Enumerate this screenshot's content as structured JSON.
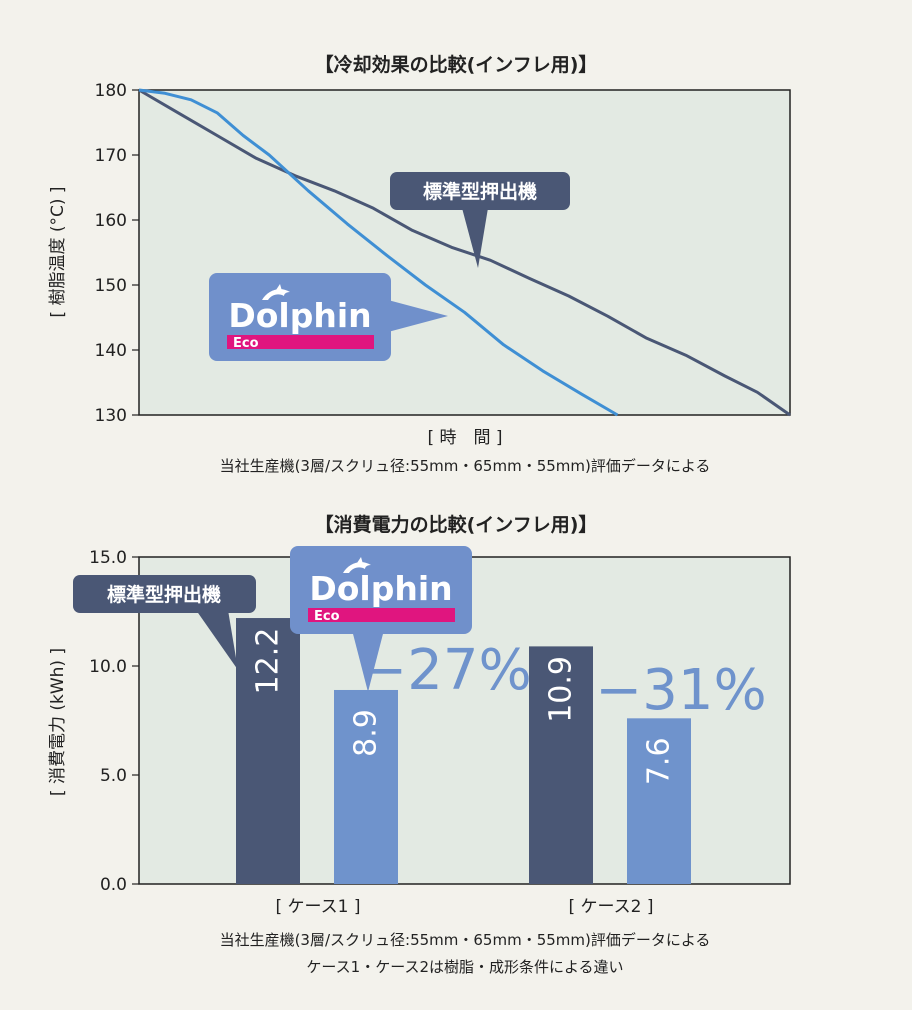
{
  "colors": {
    "background": "#f3f2ec",
    "plot_bg": "#e3eae3",
    "standard": "#4a5775",
    "dolphin": "#3f8fd4",
    "dolphin_bar": "#6f93cc",
    "bubble_standard": "#4a5775",
    "bubble_dolphin": "#7090cb",
    "eco": "#e0157f",
    "pct": "#6f93cc"
  },
  "logo": {
    "name": "Dolphin",
    "sub": "Eco",
    "icon": "dolphin-icon"
  },
  "chart_data": [
    {
      "type": "line",
      "title": "【冷却効果の比較(インフレ用)】",
      "xlabel": "[ 時　間 ]",
      "ylabel": "[ 樹脂温度 (°C) ]",
      "ylim": [
        130,
        180
      ],
      "xlim": [
        0,
        100
      ],
      "y_ticks": [
        "180",
        "170",
        "160",
        "150",
        "140",
        "130"
      ],
      "grid": false,
      "series": [
        {
          "name": "標準型押出機",
          "x": [
            0,
            6,
            12,
            18,
            24,
            30,
            36,
            42,
            48,
            54,
            60,
            66,
            72,
            78,
            84,
            90,
            95,
            100
          ],
          "y": [
            180,
            176.5,
            173,
            169.5,
            166.8,
            164.5,
            161.8,
            158.4,
            155.8,
            153.8,
            151,
            148.3,
            145.2,
            141.8,
            139.2,
            136,
            133.5,
            130
          ]
        },
        {
          "name": "Dolphin Eco",
          "x": [
            0,
            4,
            8,
            12,
            16,
            20,
            26,
            32,
            38,
            44,
            50,
            56,
            62,
            68,
            73.5
          ],
          "y": [
            180,
            179.5,
            178.5,
            176.5,
            173,
            170,
            164.5,
            159.4,
            154.6,
            150,
            145.8,
            140.8,
            136.8,
            133.2,
            130
          ]
        }
      ],
      "callout_label": "標準型押出機",
      "note": "当社生産機(3層/スクリュ径:55mm・65mm・55mm)評価データによる"
    },
    {
      "type": "bar",
      "title": "【消費電力の比較(インフレ用)】",
      "ylabel": "[ 消費電力 (kWh) ]",
      "ylim": [
        0,
        15
      ],
      "y_ticks": [
        "15.0",
        "10.0",
        "5.0",
        "0.0"
      ],
      "grid": false,
      "categories": [
        "[ ケース1 ]",
        "[ ケース2 ]"
      ],
      "series": [
        {
          "values": [
            12.2,
            10.9
          ],
          "labels": [
            "12.2",
            "10.9"
          ]
        },
        {
          "values": [
            8.9,
            7.6
          ],
          "labels": [
            "8.9",
            "7.6"
          ]
        }
      ],
      "reductions": [
        "−27%",
        "−31%"
      ],
      "callout_label": "標準型押出機",
      "notes": [
        "当社生産機(3層/スクリュ径:55mm・65mm・55mm)評価データによる",
        "ケース1・ケース2は樹脂・成形条件による違い"
      ]
    }
  ]
}
